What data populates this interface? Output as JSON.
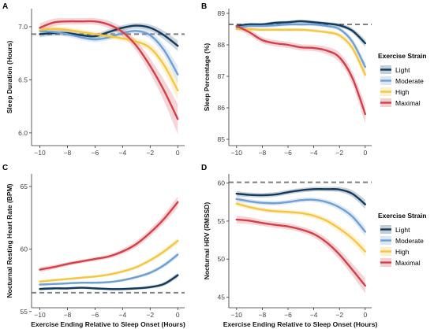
{
  "colors": {
    "Light": "#123a5c",
    "Moderate": "#6f9fd3",
    "High": "#f6c640",
    "Maximal": "#d3404a",
    "reference": "#808080"
  },
  "legend": {
    "title": "Exercise Strain",
    "items": [
      "Light",
      "Moderate",
      "High",
      "Maximal"
    ]
  },
  "chart_data": [
    {
      "panel": "A",
      "type": "line",
      "xlabel": "",
      "ylabel": "Sleep Duration (Hours)",
      "xlim": [
        -10.6,
        0.5
      ],
      "ylim": [
        5.88,
        7.17
      ],
      "xticks": [
        -10,
        -8,
        -6,
        -4,
        -2,
        0
      ],
      "yticks": [
        6.0,
        6.5,
        7.0
      ],
      "ytick_labels": [
        "6.0",
        "6.5",
        "7.0"
      ],
      "reference_y": 6.93,
      "series": [
        {
          "name": "Light",
          "x": [
            -10,
            -9,
            -8,
            -7,
            -6,
            -5,
            -4,
            -3,
            -2,
            -1,
            0
          ],
          "y": [
            6.93,
            6.94,
            6.94,
            6.92,
            6.91,
            6.95,
            6.99,
            7.01,
            6.99,
            6.92,
            6.82
          ],
          "band": [
            0.03,
            0.025,
            0.025,
            0.025,
            0.025,
            0.025,
            0.025,
            0.025,
            0.03,
            0.04,
            0.05
          ]
        },
        {
          "name": "Moderate",
          "x": [
            -10,
            -9,
            -8,
            -7,
            -6,
            -5,
            -4,
            -3,
            -2,
            -1,
            0
          ],
          "y": [
            6.96,
            6.95,
            6.93,
            6.9,
            6.88,
            6.9,
            6.94,
            6.96,
            6.92,
            6.78,
            6.55
          ],
          "band": [
            0.03,
            0.025,
            0.025,
            0.025,
            0.025,
            0.025,
            0.025,
            0.025,
            0.035,
            0.05,
            0.08
          ]
        },
        {
          "name": "High",
          "x": [
            -10,
            -9,
            -8,
            -7,
            -6,
            -5,
            -4,
            -3,
            -2,
            -1,
            0
          ],
          "y": [
            6.97,
            6.98,
            6.97,
            6.95,
            6.93,
            6.91,
            6.89,
            6.86,
            6.8,
            6.64,
            6.4
          ],
          "band": [
            0.03,
            0.025,
            0.025,
            0.025,
            0.025,
            0.025,
            0.025,
            0.03,
            0.04,
            0.06,
            0.09
          ]
        },
        {
          "name": "Maximal",
          "x": [
            -10,
            -9,
            -8,
            -7,
            -6,
            -5,
            -4,
            -3,
            -2,
            -1,
            0
          ],
          "y": [
            6.99,
            7.04,
            7.05,
            7.05,
            7.05,
            7.02,
            6.95,
            6.82,
            6.63,
            6.4,
            6.13
          ],
          "band": [
            0.04,
            0.035,
            0.03,
            0.03,
            0.03,
            0.035,
            0.04,
            0.05,
            0.07,
            0.1,
            0.14
          ]
        }
      ]
    },
    {
      "panel": "B",
      "type": "line",
      "xlabel": "",
      "ylabel": "Sleep Percentage (%)",
      "xlim": [
        -10.6,
        0.5
      ],
      "ylim": [
        84.8,
        89.15
      ],
      "xticks": [
        -10,
        -8,
        -6,
        -4,
        -2,
        0
      ],
      "yticks": [
        85,
        86,
        87,
        88,
        89
      ],
      "ytick_labels": [
        "85",
        "86",
        "87",
        "88",
        "89"
      ],
      "reference_y": 88.65,
      "series": [
        {
          "name": "Light",
          "x": [
            -10,
            -9,
            -8,
            -7,
            -6,
            -5,
            -4,
            -3,
            -2,
            -1,
            0
          ],
          "y": [
            88.6,
            88.65,
            88.65,
            88.7,
            88.72,
            88.75,
            88.72,
            88.68,
            88.62,
            88.45,
            88.05
          ],
          "band": [
            0.06,
            0.05,
            0.05,
            0.05,
            0.05,
            0.05,
            0.05,
            0.05,
            0.06,
            0.08,
            0.12
          ]
        },
        {
          "name": "Moderate",
          "x": [
            -10,
            -9,
            -8,
            -7,
            -6,
            -5,
            -4,
            -3,
            -2,
            -1,
            0
          ],
          "y": [
            88.55,
            88.6,
            88.6,
            88.62,
            88.65,
            88.65,
            88.65,
            88.6,
            88.5,
            88.1,
            87.3
          ],
          "band": [
            0.06,
            0.05,
            0.05,
            0.05,
            0.05,
            0.05,
            0.05,
            0.05,
            0.07,
            0.1,
            0.15
          ]
        },
        {
          "name": "High",
          "x": [
            -10,
            -9,
            -8,
            -7,
            -6,
            -5,
            -4,
            -3,
            -2,
            -1,
            0
          ],
          "y": [
            88.5,
            88.5,
            88.48,
            88.48,
            88.48,
            88.48,
            88.45,
            88.4,
            88.3,
            87.9,
            87.05
          ],
          "band": [
            0.06,
            0.05,
            0.05,
            0.05,
            0.05,
            0.05,
            0.05,
            0.06,
            0.08,
            0.12,
            0.18
          ]
        },
        {
          "name": "Maximal",
          "x": [
            -10,
            -9,
            -8,
            -7,
            -6,
            -5,
            -4,
            -3,
            -2,
            -1,
            0
          ],
          "y": [
            88.6,
            88.4,
            88.15,
            88.05,
            88.0,
            87.92,
            87.9,
            87.82,
            87.6,
            86.95,
            85.8
          ],
          "band": [
            0.1,
            0.1,
            0.1,
            0.1,
            0.1,
            0.1,
            0.1,
            0.12,
            0.15,
            0.2,
            0.3
          ]
        }
      ]
    },
    {
      "panel": "C",
      "type": "line",
      "xlabel": "Exercise Ending Relative to Sleep Onset (Hours)",
      "ylabel": "Nocturnal Resting Heart Rate (BPM)",
      "xlim": [
        -10.6,
        0.5
      ],
      "ylim": [
        55.3,
        66.0
      ],
      "xticks": [
        -10,
        -8,
        -6,
        -4,
        -2,
        0
      ],
      "yticks": [
        55,
        60,
        65
      ],
      "ytick_labels": [
        "55",
        "60",
        "65"
      ],
      "reference_y": 56.5,
      "series": [
        {
          "name": "Light",
          "x": [
            -10,
            -9,
            -8,
            -7,
            -6,
            -5,
            -4,
            -3,
            -2,
            -1,
            0
          ],
          "y": [
            56.8,
            56.85,
            56.85,
            56.9,
            56.85,
            56.8,
            56.8,
            56.85,
            56.95,
            57.2,
            57.9
          ],
          "band": [
            0.12,
            0.1,
            0.1,
            0.1,
            0.1,
            0.1,
            0.1,
            0.1,
            0.12,
            0.15,
            0.2
          ]
        },
        {
          "name": "Moderate",
          "x": [
            -10,
            -9,
            -8,
            -7,
            -6,
            -5,
            -4,
            -3,
            -2,
            -1,
            0
          ],
          "y": [
            57.15,
            57.2,
            57.25,
            57.3,
            57.3,
            57.35,
            57.5,
            57.75,
            58.1,
            58.7,
            59.55
          ],
          "band": [
            0.12,
            0.1,
            0.1,
            0.1,
            0.1,
            0.1,
            0.1,
            0.12,
            0.14,
            0.17,
            0.22
          ]
        },
        {
          "name": "High",
          "x": [
            -10,
            -9,
            -8,
            -7,
            -6,
            -5,
            -4,
            -3,
            -2,
            -1,
            0
          ],
          "y": [
            57.4,
            57.5,
            57.6,
            57.7,
            57.8,
            57.95,
            58.2,
            58.55,
            59.1,
            59.8,
            60.65
          ],
          "band": [
            0.12,
            0.1,
            0.1,
            0.1,
            0.1,
            0.1,
            0.12,
            0.14,
            0.16,
            0.2,
            0.25
          ]
        },
        {
          "name": "Maximal",
          "x": [
            -10,
            -9,
            -8,
            -7,
            -6,
            -5,
            -4,
            -3,
            -2,
            -1,
            0
          ],
          "y": [
            58.35,
            58.55,
            58.8,
            59.0,
            59.2,
            59.4,
            59.8,
            60.4,
            61.3,
            62.4,
            63.75
          ],
          "band": [
            0.2,
            0.17,
            0.15,
            0.15,
            0.15,
            0.17,
            0.2,
            0.25,
            0.3,
            0.35,
            0.45
          ]
        }
      ]
    },
    {
      "panel": "D",
      "type": "line",
      "xlabel": "Exercise Ending Relative to Sleep Onset (Hours)",
      "ylabel": "Nocturnal HRV (RMSSD)",
      "xlim": [
        -10.6,
        0.5
      ],
      "ylim": [
        43.6,
        61.2
      ],
      "xticks": [
        -10,
        -8,
        -6,
        -4,
        -2,
        0
      ],
      "yticks": [
        45,
        50,
        55,
        60
      ],
      "ytick_labels": [
        "45",
        "50",
        "55",
        "60"
      ],
      "reference_y": 60.1,
      "series": [
        {
          "name": "Light",
          "x": [
            -10,
            -9,
            -8,
            -7,
            -6,
            -5,
            -4,
            -3,
            -2,
            -1,
            0
          ],
          "y": [
            58.6,
            58.45,
            58.4,
            58.5,
            58.8,
            59.05,
            59.2,
            59.2,
            59.15,
            58.6,
            57.2
          ],
          "band": [
            0.35,
            0.3,
            0.3,
            0.3,
            0.3,
            0.3,
            0.3,
            0.3,
            0.35,
            0.45,
            0.6
          ]
        },
        {
          "name": "Moderate",
          "x": [
            -10,
            -9,
            -8,
            -7,
            -6,
            -5,
            -4,
            -3,
            -2,
            -1,
            0
          ],
          "y": [
            57.9,
            57.6,
            57.4,
            57.35,
            57.5,
            57.75,
            57.8,
            57.5,
            56.8,
            55.6,
            53.6
          ],
          "band": [
            0.35,
            0.3,
            0.3,
            0.3,
            0.3,
            0.3,
            0.3,
            0.35,
            0.4,
            0.5,
            0.65
          ]
        },
        {
          "name": "High",
          "x": [
            -10,
            -9,
            -8,
            -7,
            -6,
            -5,
            -4,
            -3,
            -2,
            -1,
            0
          ],
          "y": [
            57.3,
            56.85,
            56.5,
            56.3,
            56.2,
            56.05,
            55.7,
            55.05,
            54.0,
            52.7,
            51.0
          ],
          "band": [
            0.35,
            0.3,
            0.3,
            0.3,
            0.3,
            0.3,
            0.35,
            0.4,
            0.45,
            0.55,
            0.7
          ]
        },
        {
          "name": "Maximal",
          "x": [
            -10,
            -9,
            -8,
            -7,
            -6,
            -5,
            -4,
            -3,
            -2,
            -1,
            0
          ],
          "y": [
            55.2,
            55.05,
            54.75,
            54.5,
            54.3,
            53.9,
            53.3,
            52.2,
            50.6,
            48.6,
            46.5
          ],
          "band": [
            0.5,
            0.45,
            0.4,
            0.4,
            0.4,
            0.4,
            0.45,
            0.55,
            0.65,
            0.8,
            1.0
          ]
        }
      ]
    }
  ]
}
